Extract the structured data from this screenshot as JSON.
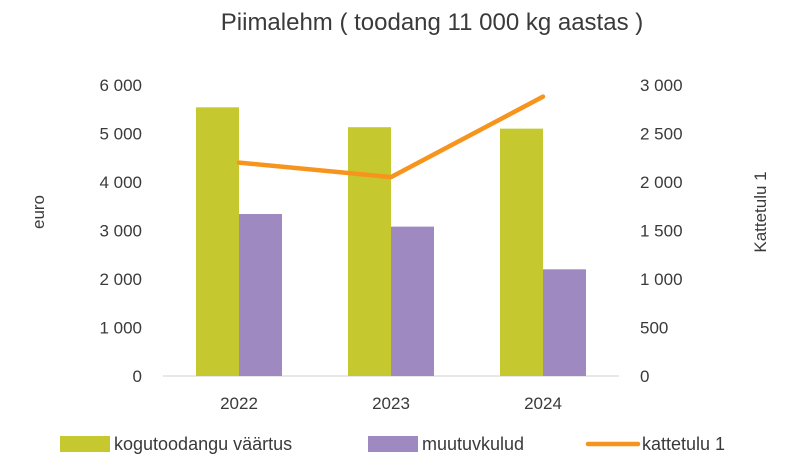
{
  "chart_data": {
    "type": "bar",
    "title": "Piimalehm ( toodang 11 000 kg aastas )",
    "categories": [
      "2022",
      "2023",
      "2024"
    ],
    "ylabel": "euro",
    "y2label": "Kattetulu 1",
    "ylim": [
      0,
      6000
    ],
    "y2lim": [
      0,
      3000
    ],
    "yticks": [
      "0",
      "1 000",
      "2 000",
      "3 000",
      "4 000",
      "5 000",
      "6 000"
    ],
    "y2ticks": [
      "0",
      "500",
      "1 000",
      "1 500",
      "2 000",
      "2 500",
      "3 000"
    ],
    "grid": false,
    "legend_position": "bottom",
    "series": [
      {
        "name": "kogutoodangu väärtus",
        "type": "bar",
        "axis": "left",
        "color": "#c5c92f",
        "values": [
          5540,
          5130,
          5100
        ]
      },
      {
        "name": "muutuvkulud",
        "type": "bar",
        "axis": "left",
        "color": "#9e8ac1",
        "values": [
          3340,
          3080,
          2200
        ]
      },
      {
        "name": "kattetulu 1",
        "type": "line",
        "axis": "right",
        "color": "#f7941d",
        "values": [
          2200,
          2050,
          2880
        ]
      }
    ]
  }
}
